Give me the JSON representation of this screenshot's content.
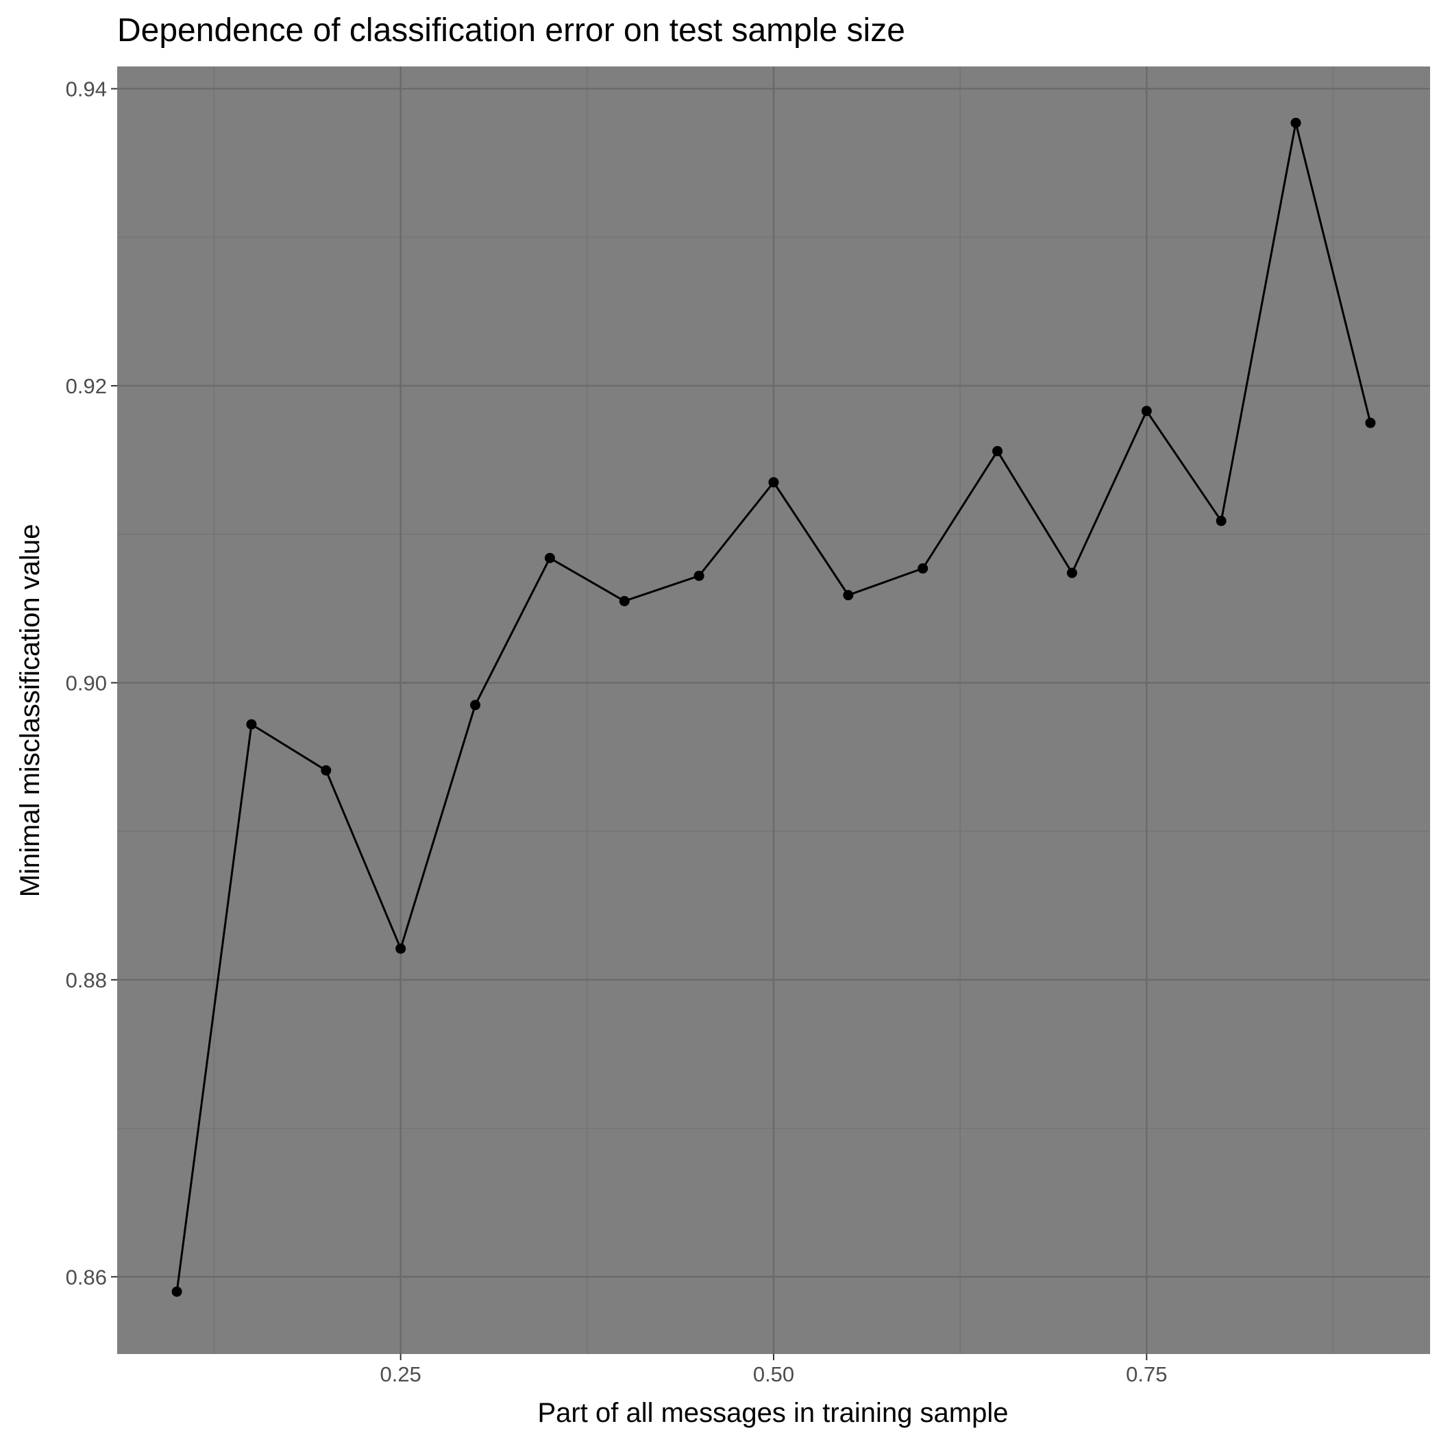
{
  "chart_data": {
    "type": "line",
    "title": "Dependence of classification error on test sample size",
    "xlabel": "Part of all messages in training sample",
    "ylabel": "Minimal misclassification value",
    "x": [
      0.1,
      0.15,
      0.2,
      0.25,
      0.3,
      0.35,
      0.4,
      0.45,
      0.5,
      0.55,
      0.6,
      0.65,
      0.7,
      0.75,
      0.8,
      0.85,
      0.9
    ],
    "y": [
      0.859,
      0.8972,
      0.8941,
      0.8821,
      0.8985,
      0.9084,
      0.9055,
      0.9072,
      0.9135,
      0.9059,
      0.9077,
      0.9156,
      0.9074,
      0.9183,
      0.9109,
      0.9377,
      0.9175
    ],
    "xlim": [
      0.06,
      0.94
    ],
    "ylim": [
      0.8548,
      0.9415
    ],
    "x_ticks": [
      {
        "value": 0.25,
        "label": "0.25"
      },
      {
        "value": 0.5,
        "label": "0.50"
      },
      {
        "value": 0.75,
        "label": "0.75"
      }
    ],
    "x_minor_ticks": [
      0.125,
      0.375,
      0.625,
      0.875
    ],
    "y_ticks": [
      {
        "value": 0.86,
        "label": "0.86"
      },
      {
        "value": 0.88,
        "label": "0.88"
      },
      {
        "value": 0.9,
        "label": "0.90"
      },
      {
        "value": 0.92,
        "label": "0.92"
      },
      {
        "value": 0.94,
        "label": "0.94"
      }
    ],
    "y_minor_ticks": [
      0.87,
      0.89,
      0.91,
      0.93
    ],
    "grid": true,
    "legend": "none",
    "colors": {
      "panel_background": "#7f7f7f",
      "major_grid": "#6b6b6b",
      "minor_grid": "#747474",
      "line": "#000000",
      "point": "#000000",
      "tick_label": "#4d4d4d",
      "tick_mark": "#333333"
    }
  }
}
